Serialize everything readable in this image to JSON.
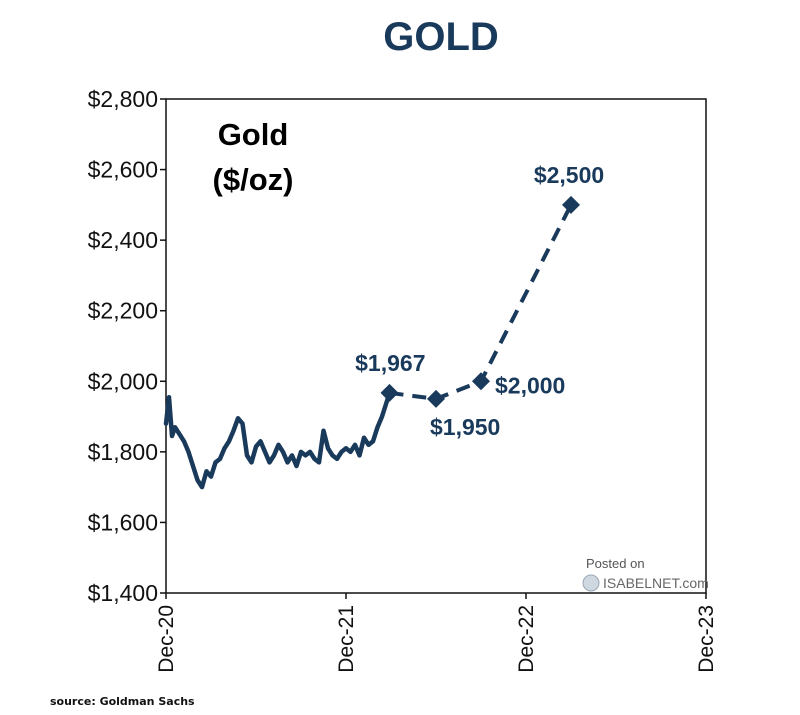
{
  "chart_data": {
    "type": "line",
    "title": "GOLD",
    "inset_label": [
      "Gold",
      "($/oz)"
    ],
    "xlabel": "",
    "ylabel": "",
    "ylim": [
      1400,
      2800
    ],
    "y_ticks": [
      "$1,400",
      "$1,600",
      "$1,800",
      "$2,000",
      "$2,200",
      "$2,400",
      "$2,600",
      "$2,800"
    ],
    "y_tick_values": [
      1400,
      1600,
      1800,
      2000,
      2200,
      2400,
      2600,
      2800
    ],
    "x_ticks": [
      "Dec-20",
      "Dec-21",
      "Dec-22",
      "Dec-23"
    ],
    "x_range_months": [
      0,
      36
    ],
    "series": [
      {
        "kind": "historical",
        "style": "solid",
        "points": [
          [
            0,
            1880
          ],
          [
            0.2,
            1955
          ],
          [
            0.4,
            1845
          ],
          [
            0.6,
            1870
          ],
          [
            0.9,
            1850
          ],
          [
            1.2,
            1830
          ],
          [
            1.5,
            1800
          ],
          [
            1.8,
            1760
          ],
          [
            2.1,
            1720
          ],
          [
            2.4,
            1700
          ],
          [
            2.7,
            1745
          ],
          [
            3.0,
            1730
          ],
          [
            3.3,
            1770
          ],
          [
            3.6,
            1780
          ],
          [
            3.9,
            1810
          ],
          [
            4.2,
            1830
          ],
          [
            4.5,
            1860
          ],
          [
            4.8,
            1895
          ],
          [
            5.1,
            1880
          ],
          [
            5.4,
            1790
          ],
          [
            5.7,
            1770
          ],
          [
            6.0,
            1815
          ],
          [
            6.3,
            1830
          ],
          [
            6.6,
            1800
          ],
          [
            6.9,
            1770
          ],
          [
            7.2,
            1790
          ],
          [
            7.5,
            1820
          ],
          [
            7.8,
            1800
          ],
          [
            8.1,
            1770
          ],
          [
            8.4,
            1790
          ],
          [
            8.7,
            1760
          ],
          [
            9.0,
            1800
          ],
          [
            9.3,
            1790
          ],
          [
            9.6,
            1800
          ],
          [
            9.9,
            1780
          ],
          [
            10.2,
            1770
          ],
          [
            10.5,
            1860
          ],
          [
            10.8,
            1810
          ],
          [
            11.1,
            1790
          ],
          [
            11.4,
            1780
          ],
          [
            11.7,
            1800
          ],
          [
            12.0,
            1810
          ],
          [
            12.3,
            1800
          ],
          [
            12.6,
            1820
          ],
          [
            12.9,
            1790
          ],
          [
            13.2,
            1840
          ],
          [
            13.5,
            1820
          ],
          [
            13.8,
            1830
          ],
          [
            14.1,
            1870
          ],
          [
            14.4,
            1900
          ],
          [
            14.7,
            1940
          ],
          [
            14.9,
            1967
          ]
        ]
      },
      {
        "kind": "forecast",
        "style": "dashed",
        "points": [
          [
            14.9,
            1967
          ],
          [
            18.0,
            1950
          ],
          [
            21.0,
            2000
          ],
          [
            27.0,
            2500
          ]
        ]
      }
    ],
    "annotations": [
      {
        "text": "$1,967",
        "x": 14.9,
        "y": 1967
      },
      {
        "text": "$1,950",
        "x": 18.0,
        "y": 1950
      },
      {
        "text": "$2,000",
        "x": 21.0,
        "y": 2000
      },
      {
        "text": "$2,500",
        "x": 27.0,
        "y": 2500
      }
    ],
    "grid": false,
    "colors": {
      "line": "#1a3a5c",
      "title": "#1a3a5c",
      "axis": "#111111"
    }
  },
  "source": "source: Goldman Sachs",
  "watermark": {
    "posted": "Posted on",
    "brand": "ISABELNET",
    "suffix": ".com"
  }
}
